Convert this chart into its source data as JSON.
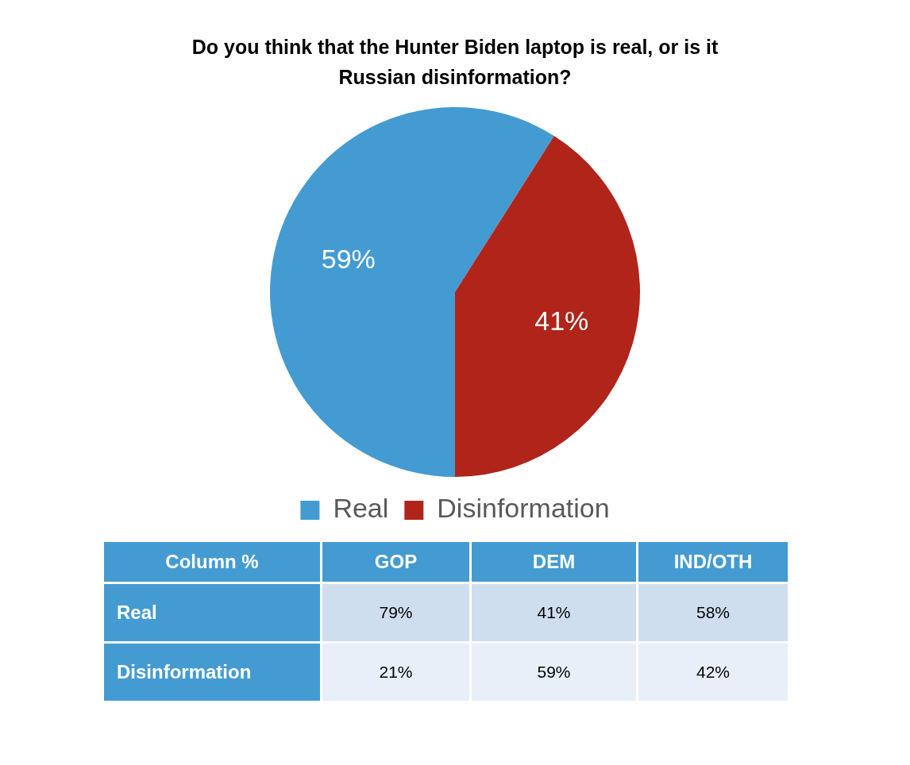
{
  "chart_data": [
    {
      "type": "pie",
      "title": "Do you think that the Hunter Biden laptop is real, or is it Russian disinformation?",
      "categories": [
        "Real",
        "Disinformation"
      ],
      "values": [
        59,
        41
      ],
      "colors": [
        "#449bd2",
        "#b0241a"
      ],
      "legend": "bottom",
      "value_labels": [
        "59%",
        "41%"
      ]
    },
    {
      "type": "heatmap",
      "ylabel": "Column %",
      "categories": [
        "GOP",
        "DEM",
        "IND/OTH"
      ],
      "y_categories": [
        "Real",
        "Disinformation"
      ],
      "cells": [
        [
          79,
          41,
          58
        ],
        [
          21,
          59,
          42
        ]
      ],
      "cell_labels": [
        [
          "79%",
          "41%",
          "58%"
        ],
        [
          "21%",
          "59%",
          "42%"
        ]
      ]
    }
  ]
}
